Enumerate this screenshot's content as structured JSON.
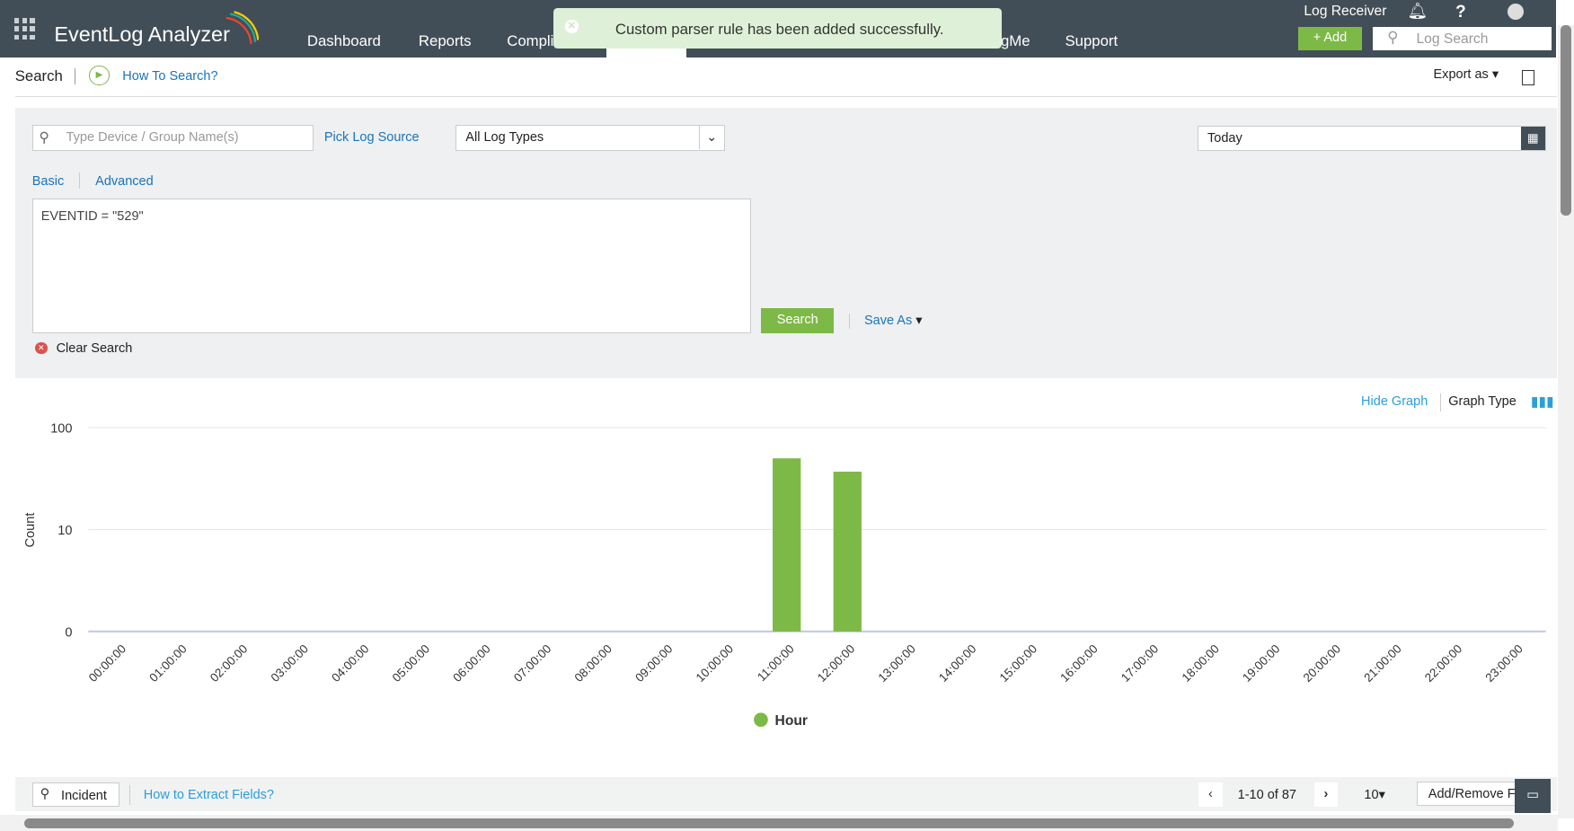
{
  "app": {
    "title": "EventLog Analyzer"
  },
  "nav": {
    "items": [
      "Dashboard",
      "Reports",
      "Compli",
      "gMe",
      "Support"
    ]
  },
  "toast": {
    "message": "Custom parser rule has been added successfully."
  },
  "header": {
    "log_receiver": "Log Receiver",
    "help": "?",
    "add": "Add",
    "log_search_placeholder": "Log Search"
  },
  "search": {
    "title": "Search",
    "how_to": "How To Search?",
    "export_as": "Export as",
    "device_placeholder": "Type Device / Group Name(s)",
    "pick_log_source": "Pick Log Source",
    "log_type": "All Log Types",
    "date_range": "Today",
    "tab_basic": "Basic",
    "tab_advanced": "Advanced",
    "query": "EVENTID = \"529\"",
    "search_button": "Search",
    "save_as": "Save As",
    "clear_search": "Clear Search"
  },
  "graph": {
    "hide_graph": "Hide Graph",
    "graph_type": "Graph Type"
  },
  "chart_data": {
    "type": "bar",
    "ylabel": "Count",
    "yscale": "log",
    "yticks": [
      "0",
      "10",
      "100"
    ],
    "categories": [
      "00:00:00",
      "01:00:00",
      "02:00:00",
      "03:00:00",
      "04:00:00",
      "05:00:00",
      "06:00:00",
      "07:00:00",
      "08:00:00",
      "09:00:00",
      "10:00:00",
      "11:00:00",
      "12:00:00",
      "13:00:00",
      "14:00:00",
      "15:00:00",
      "16:00:00",
      "17:00:00",
      "18:00:00",
      "19:00:00",
      "20:00:00",
      "21:00:00",
      "22:00:00",
      "23:00:00"
    ],
    "series": [
      {
        "name": "Hour",
        "color": "#7db946",
        "values": [
          0,
          0,
          0,
          0,
          0,
          0,
          0,
          0,
          0,
          0,
          0,
          50,
          37,
          0,
          0,
          0,
          0,
          0,
          0,
          0,
          0,
          0,
          0,
          0
        ]
      }
    ],
    "legend": "bottom",
    "grid": true
  },
  "footer": {
    "incident": "Incident",
    "extract": "How to Extract Fields?",
    "range": "1-10 of 87",
    "page_size": "10",
    "add_remove": "Add/Remove Fi"
  }
}
